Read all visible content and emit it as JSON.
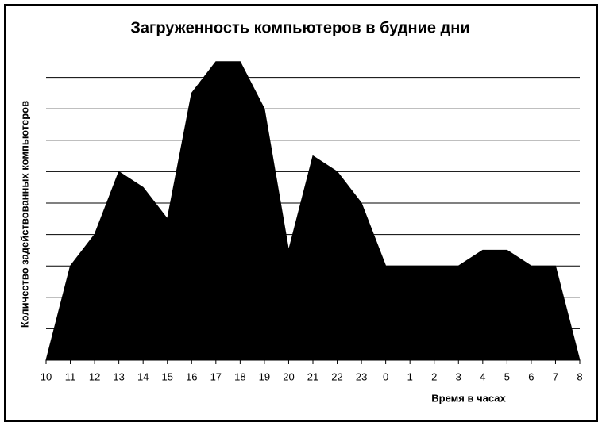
{
  "chart_data": {
    "type": "area",
    "title": "Загруженность компьютеров в будние дни",
    "xlabel": "Время в часах",
    "ylabel": "Количество задействованных компьютеров",
    "categories": [
      "10",
      "11",
      "12",
      "13",
      "14",
      "15",
      "16",
      "17",
      "18",
      "19",
      "20",
      "21",
      "22",
      "23",
      "0",
      "1",
      "2",
      "3",
      "4",
      "5",
      "6",
      "7",
      "8"
    ],
    "values": [
      0,
      3,
      4,
      6,
      5.5,
      4.5,
      8.5,
      9.5,
      9.5,
      8,
      3.5,
      6.5,
      6,
      5,
      3,
      3,
      3,
      3,
      3.5,
      3.5,
      3,
      3,
      0
    ],
    "color": "#000000",
    "ylim": [
      0,
      10
    ],
    "yticks": [
      1,
      2,
      3,
      4,
      5,
      6,
      7,
      8,
      9
    ],
    "grid": true
  }
}
